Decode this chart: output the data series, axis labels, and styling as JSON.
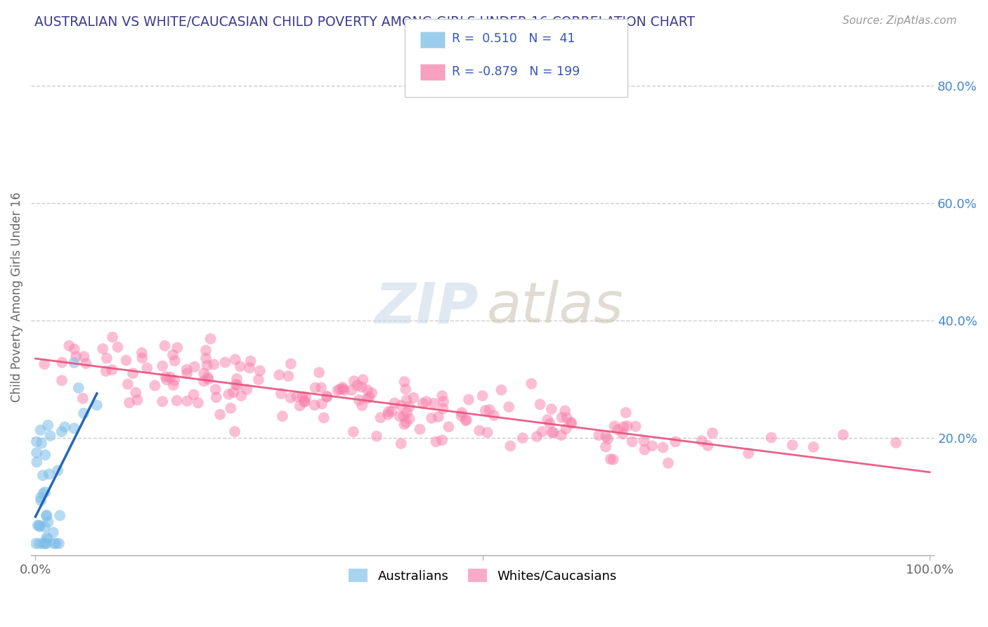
{
  "title": "AUSTRALIAN VS WHITE/CAUCASIAN CHILD POVERTY AMONG GIRLS UNDER 16 CORRELATION CHART",
  "source": "Source: ZipAtlas.com",
  "ylabel": "Child Poverty Among Girls Under 16",
  "right_yticks": [
    0.2,
    0.4,
    0.6,
    0.8
  ],
  "right_yticklabels": [
    "20.0%",
    "40.0%",
    "60.0%",
    "80.0%"
  ],
  "watermark_zip": "ZIP",
  "watermark_atlas": "atlas",
  "australian_color": "#7abde8",
  "caucasian_color": "#f87faa",
  "australian_line_color": "#1a5eb8",
  "caucasian_line_color": "#e8507a",
  "bg_color": "#ffffff",
  "grid_color": "#c8c8c8",
  "ylim": [
    0,
    0.88
  ],
  "xlim": [
    -0.005,
    1.005
  ],
  "australian_R": 0.51,
  "australian_N": 41,
  "caucasian_R": -0.879,
  "caucasian_N": 199,
  "seed": 7
}
